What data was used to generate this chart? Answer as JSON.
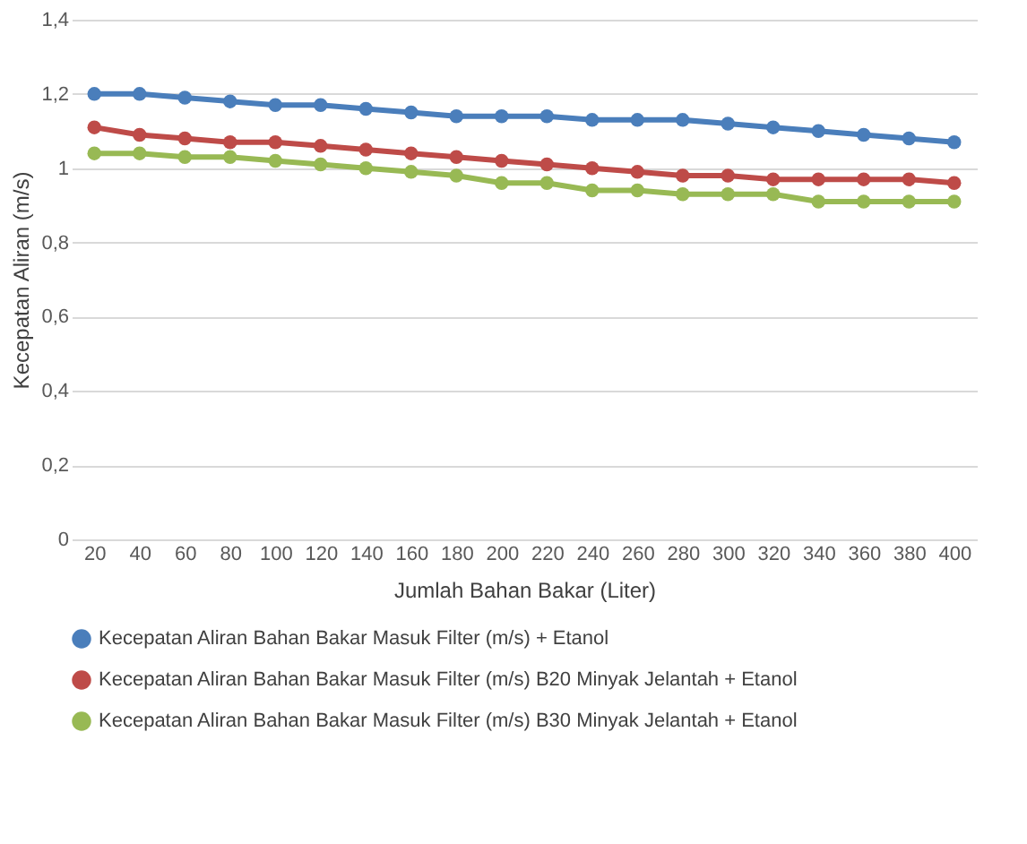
{
  "chart_data": {
    "type": "line",
    "xlabel": "Jumlah Bahan Bakar  (Liter)",
    "ylabel": "Kecepatan Aliran (m/s)",
    "categories": [
      "20",
      "40",
      "60",
      "80",
      "100",
      "120",
      "140",
      "160",
      "180",
      "200",
      "220",
      "240",
      "260",
      "280",
      "300",
      "320",
      "340",
      "360",
      "380",
      "400"
    ],
    "series": [
      {
        "name": "Kecepatan Aliran Bahan Bakar Masuk Filter (m/s) + Etanol",
        "color": "#4a7ebb",
        "values": [
          1.2,
          1.2,
          1.19,
          1.18,
          1.17,
          1.17,
          1.16,
          1.15,
          1.14,
          1.14,
          1.14,
          1.13,
          1.13,
          1.13,
          1.12,
          1.11,
          1.1,
          1.09,
          1.08,
          1.07
        ]
      },
      {
        "name": "Kecepatan Aliran Bahan Bakar Masuk Filter (m/s) B20 Minyak Jelantah + Etanol",
        "color": "#be4b48",
        "values": [
          1.11,
          1.09,
          1.08,
          1.07,
          1.07,
          1.06,
          1.05,
          1.04,
          1.03,
          1.02,
          1.01,
          1.0,
          0.99,
          0.98,
          0.98,
          0.97,
          0.97,
          0.97,
          0.97,
          0.96
        ]
      },
      {
        "name": "Kecepatan Aliran Bahan Bakar Masuk Filter (m/s) B30 Minyak Jelantah + Etanol",
        "color": "#98b954",
        "values": [
          1.04,
          1.04,
          1.03,
          1.03,
          1.02,
          1.01,
          1.0,
          0.99,
          0.98,
          0.96,
          0.96,
          0.94,
          0.94,
          0.93,
          0.93,
          0.93,
          0.91,
          0.91,
          0.91,
          0.91
        ]
      }
    ],
    "ylim": [
      0,
      1.4
    ],
    "yticks": [
      0,
      {
        "value": 0.2,
        "label": "0,2"
      },
      {
        "value": 0.4,
        "label": "0,4"
      },
      {
        "value": 0.6,
        "label": "0,6"
      },
      {
        "value": 0.8,
        "label": "0,8"
      },
      1,
      {
        "value": 1.2,
        "label": "1,2"
      },
      {
        "value": 1.4,
        "label": "1,4"
      }
    ],
    "grid": "y",
    "legend": "bottom",
    "marker": "circle",
    "line_style": "solid"
  }
}
